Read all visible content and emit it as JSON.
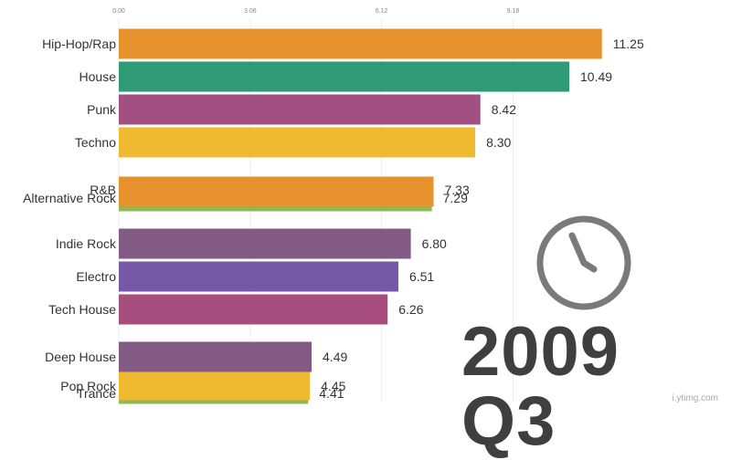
{
  "chart_data": {
    "type": "bar",
    "orientation": "horizontal",
    "title": "",
    "xlabel": "",
    "ylabel": "",
    "xlim": [
      0,
      12.24
    ],
    "x_ticks": [
      "0.00",
      "3.06",
      "6.12",
      "9.18"
    ],
    "grid": true,
    "categories": [
      "Hip-Hop/Rap",
      "House",
      "Punk",
      "Techno",
      "R&B",
      "Alternative Rock",
      "Indie Rock",
      "Electro",
      "Tech House",
      "Deep House",
      "Pop Rock",
      "Trance"
    ],
    "values": [
      11.25,
      10.49,
      8.42,
      8.3,
      7.33,
      7.29,
      6.8,
      6.51,
      6.26,
      4.49,
      4.45,
      4.41
    ],
    "value_labels": [
      "11.25",
      "10.49",
      "8.42",
      "8.30",
      "7.33",
      "7.29",
      "6.80",
      "6.51",
      "6.26",
      "4.49",
      "4.45",
      "4.41"
    ],
    "colors": [
      "#e8922e",
      "#2e9a76",
      "#a34f82",
      "#f0ba30",
      "#e8922e",
      "#8db957",
      "#825a84",
      "#7658a6",
      "#a74d7d",
      "#825a84",
      "#f0ba30",
      "#8db957"
    ]
  },
  "period": "2009 Q3",
  "clock_icon": "clock-icon",
  "watermark": "i.ytimg.com"
}
